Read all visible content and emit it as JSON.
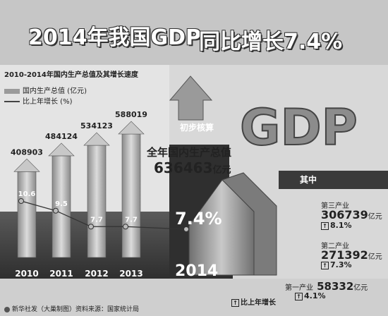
{
  "title_line1": "2014年我国GDP",
  "title_line2": "同比增长7.4%",
  "chart_title": "2010-2014年国内生产总值及其增长速度",
  "legend_bar": "国内生产总值 (亿元)",
  "legend_line": "比上年增长 (%)",
  "chart_data": {
    "type": "bar",
    "title": "2010-2014年国内生产总值及其增长速度",
    "categories": [
      "2010",
      "2011",
      "2012",
      "2013",
      "2014"
    ],
    "series": [
      {
        "name": "国内生产总值 (亿元)",
        "values": [
          408903,
          484124,
          534123,
          588019,
          636463
        ]
      },
      {
        "name": "比上年增长 (%)",
        "values": [
          10.6,
          9.5,
          7.7,
          7.7,
          7.4
        ]
      }
    ],
    "bar_labels": [
      "408903",
      "484124",
      "534123",
      "588019"
    ],
    "growth_labels": [
      "10.6",
      "9.5",
      "7.7",
      "7.7",
      "7.4%"
    ],
    "legend": "top-left"
  },
  "prelim_label": "初步核算",
  "gdp_word": "GDP",
  "total_label": "全年国内生产总值",
  "total_value": "636463",
  "total_unit": "亿元",
  "year_2014": "2014",
  "breakdown_header": "其中",
  "tertiary": {
    "label": "第三产业",
    "value": "306739",
    "unit": "亿元",
    "growth": "8.1%"
  },
  "secondary": {
    "label": "第二产业",
    "value": "271392",
    "unit": "亿元",
    "growth": "7.3%"
  },
  "primary": {
    "label": "第一产业",
    "value": "58332",
    "unit": "亿元",
    "growth": "4.1%"
  },
  "growth_legend": "比上年增长",
  "up_glyph": "↑",
  "credit": "新华社发（大巢制图）资料来源：国家统计局",
  "colors": {
    "background": "#d8d8d8",
    "dark": "#3a3a3a",
    "bar": "#bdbdbd",
    "arrow": "#9a9a9a"
  }
}
